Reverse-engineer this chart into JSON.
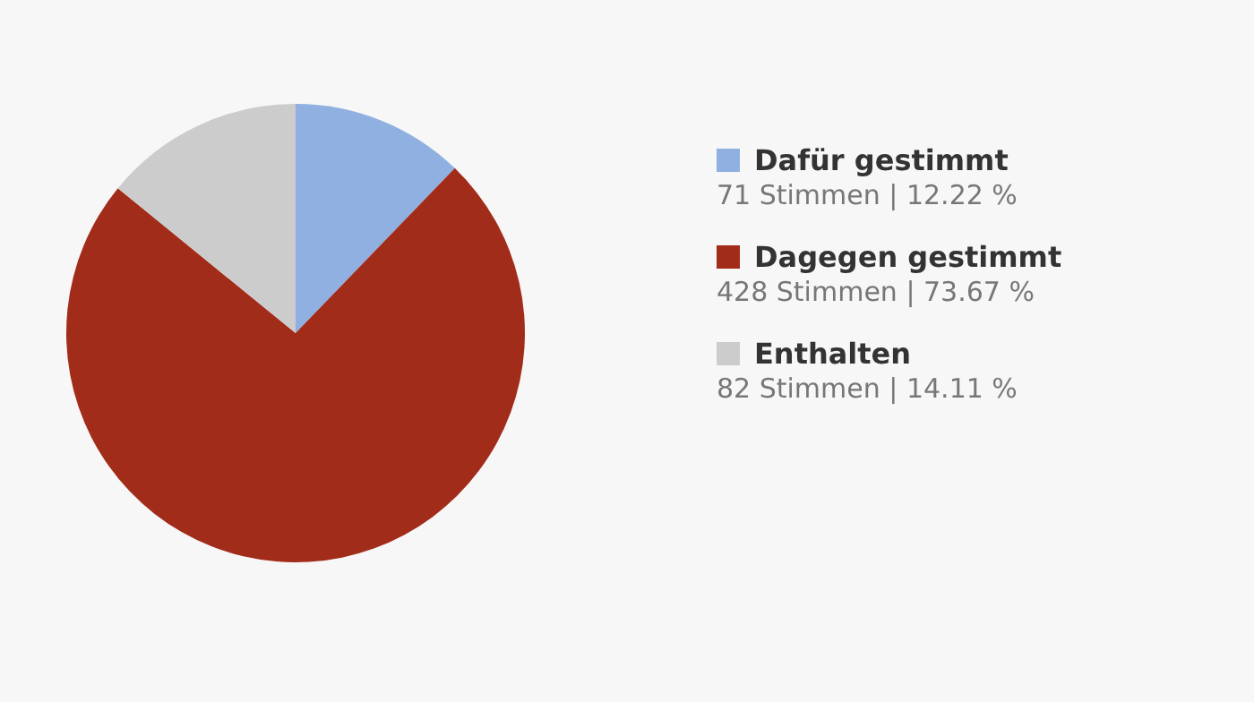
{
  "chart_data": {
    "type": "pie",
    "categories": [
      "Dafür gestimmt",
      "Dagegen gestimmt",
      "Enthalten"
    ],
    "values": [
      71,
      428,
      82
    ],
    "colors": [
      "#8fb0e0",
      "#a22c1a",
      "#cccccc"
    ],
    "value_labels": [
      "71 Stimmen | 12.22 %",
      "428 Stimmen | 73.67 %",
      "82 Stimmen | 14.11 %"
    ],
    "legend": "right"
  }
}
